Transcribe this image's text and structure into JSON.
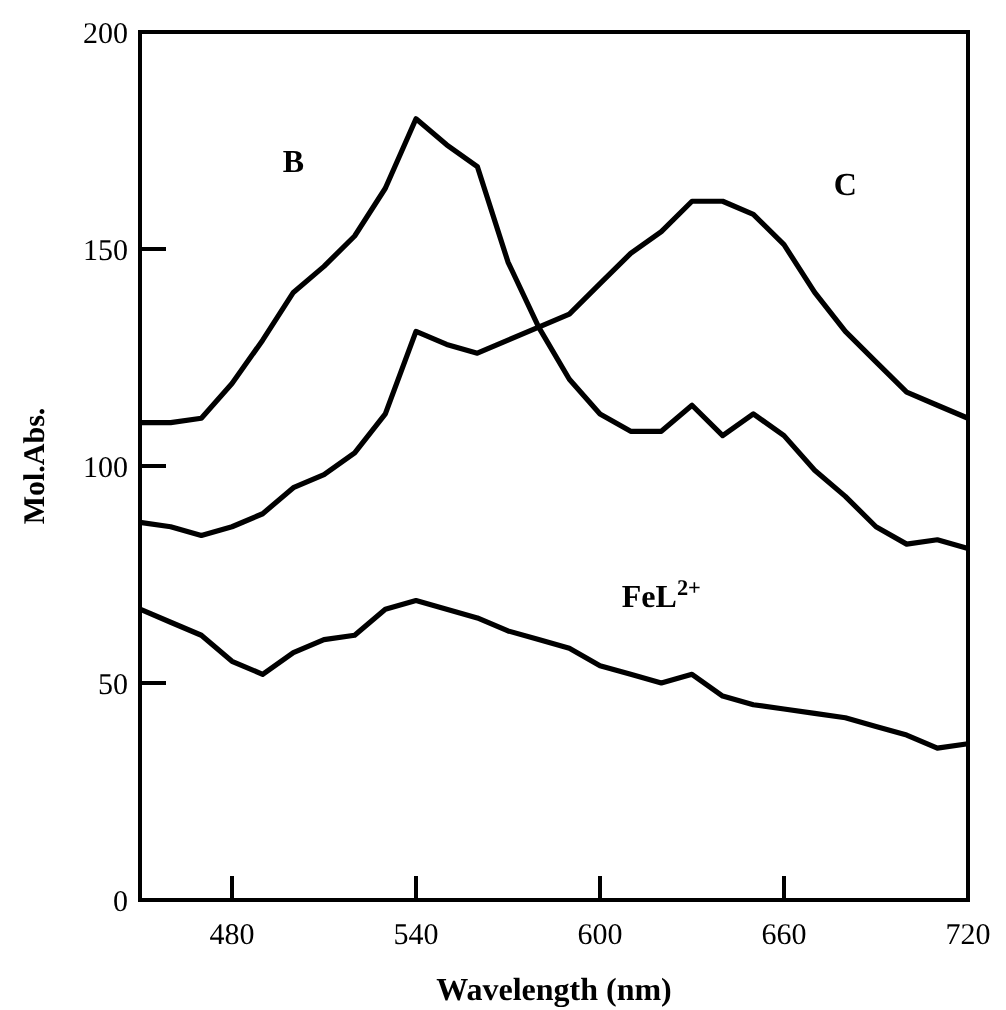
{
  "chart_data": {
    "type": "line",
    "xlabel": "Wavelength (nm)",
    "ylabel": "Mol.Abs.",
    "x": [
      450,
      460,
      470,
      480,
      490,
      500,
      510,
      520,
      530,
      540,
      550,
      560,
      570,
      580,
      590,
      600,
      610,
      620,
      630,
      640,
      650,
      660,
      670,
      680,
      690,
      700,
      710,
      720
    ],
    "series": [
      {
        "name": "B",
        "color": "#000000",
        "values": [
          110,
          110,
          111,
          119,
          129,
          140,
          146,
          153,
          164,
          180,
          174,
          169,
          147,
          132,
          120,
          112,
          108,
          108,
          114,
          107,
          112,
          107,
          99,
          93,
          86,
          82,
          83,
          81
        ]
      },
      {
        "name": "C",
        "color": "#000000",
        "values": [
          87,
          86,
          84,
          86,
          89,
          95,
          98,
          103,
          112,
          131,
          128,
          126,
          129,
          132,
          135,
          142,
          149,
          154,
          161,
          161,
          158,
          151,
          140,
          131,
          124,
          117,
          114,
          111
        ]
      },
      {
        "name": "FeL$^{2+}$",
        "color": "#000000",
        "values": [
          67,
          64,
          61,
          55,
          52,
          57,
          60,
          61,
          67,
          69,
          67,
          65,
          62,
          60,
          58,
          54,
          52,
          50,
          52,
          47,
          45,
          44,
          43,
          42,
          40,
          38,
          35,
          36
        ]
      }
    ],
    "xlim": [
      450,
      720
    ],
    "xticks": [
      480,
      540,
      600,
      660,
      720
    ],
    "ylim": [
      0,
      200
    ],
    "yticks": [
      0,
      50,
      100,
      150,
      200
    ],
    "grid": false,
    "marker": "none",
    "line_style": "solid"
  }
}
